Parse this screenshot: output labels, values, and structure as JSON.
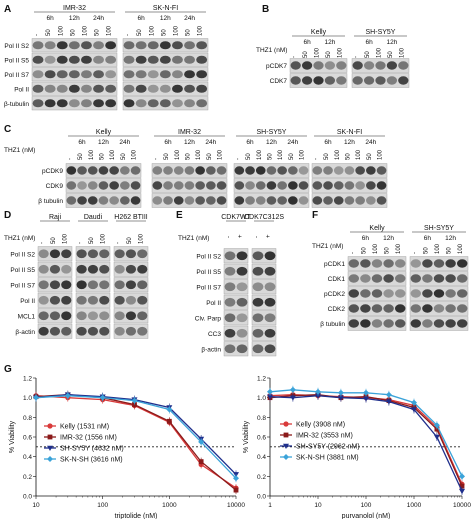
{
  "panels": {
    "A": {
      "letter": "A",
      "groups": [
        {
          "label": "IMR-32"
        },
        {
          "label": "SK-N-FI"
        }
      ],
      "times": [
        "6h",
        "12h",
        "24h"
      ],
      "lanes": [
        "-",
        "50",
        "100",
        "50",
        "100",
        "50",
        "100"
      ],
      "rows": [
        "Pol II S2",
        "Pol II S5",
        "Pol II S7",
        "Pol II",
        "β-tubulin"
      ]
    },
    "B": {
      "letter": "B",
      "groups": [
        {
          "label": "Kelly"
        },
        {
          "label": "SH-SY5Y"
        }
      ],
      "times": [
        "6h",
        "12h"
      ],
      "lanes": [
        "-",
        "50",
        "100",
        "50",
        "100"
      ],
      "thz": "THZ1 (nM)",
      "rows": [
        "pCDK7",
        "CDK7"
      ]
    },
    "C": {
      "letter": "C",
      "groups": [
        {
          "label": "Kelly"
        },
        {
          "label": "IMR-32"
        },
        {
          "label": "SH-SY5Y"
        },
        {
          "label": "SK-N-FI"
        }
      ],
      "times": [
        "6h",
        "12h",
        "24h"
      ],
      "lanes": [
        "-",
        "50",
        "100",
        "50",
        "100",
        "50",
        "100"
      ],
      "thz": "THZ1 (nM)",
      "rows": [
        "pCDK9",
        "CDK9",
        "β tubulin"
      ]
    },
    "D": {
      "letter": "D",
      "groups": [
        {
          "label": "Raji"
        },
        {
          "label": "Daudi"
        },
        {
          "label": "H262 BTIII"
        }
      ],
      "lanes": [
        "-",
        "50",
        "100"
      ],
      "thz": "THZ1 (nM)",
      "rows": [
        "Pol II S2",
        "Pol II S5",
        "Pol II S7",
        "Pol II",
        "MCL1",
        "β-actin"
      ]
    },
    "E": {
      "letter": "E",
      "groups": [
        {
          "label": "CDK7WT"
        },
        {
          "label": "CDK7C312S"
        }
      ],
      "lanes": [
        "-",
        "+"
      ],
      "thz": "THZ1 (nM)",
      "rows": [
        "Pol II S2",
        "Pol II S5",
        "Pol II S7",
        "Pol II",
        "Clv. Parp",
        "CC3",
        "β-actin"
      ]
    },
    "F": {
      "letter": "F",
      "groups": [
        {
          "label": "Kelly"
        },
        {
          "label": "SH-SY5Y"
        }
      ],
      "times": [
        "6h",
        "12h"
      ],
      "lanes": [
        "-",
        "50",
        "100",
        "50",
        "100"
      ],
      "thz": "THZ1 (nM)",
      "rows": [
        "pCDK1",
        "CDK1",
        "pCDK2",
        "CDK2",
        "β tubulin"
      ]
    },
    "G": {
      "letter": "G"
    }
  },
  "chart_data": [
    {
      "type": "line",
      "xlabel": "triptolide (nM)",
      "ylabel": "% Viability",
      "xscale": "log",
      "xlim": [
        10,
        10000
      ],
      "ylim": [
        0.0,
        1.2
      ],
      "xticks": [
        "10",
        "100",
        "1000",
        "10000"
      ],
      "yticks": [
        "0.0",
        "0.2",
        "0.4",
        "0.6",
        "0.8",
        "1.0",
        "1.2"
      ],
      "threshold": 0.5,
      "x": [
        10,
        30,
        100,
        300,
        1000,
        3000,
        10000
      ],
      "series": [
        {
          "name": "Kelly (1531 nM)",
          "color": "#d93a3a",
          "marker": "circle",
          "values": [
            1.02,
            1.0,
            0.98,
            0.92,
            0.75,
            0.32,
            0.08
          ]
        },
        {
          "name": "IMR-32 (1556 nM)",
          "color": "#8b1a1a",
          "marker": "square",
          "values": [
            1.01,
            1.03,
            1.0,
            0.93,
            0.76,
            0.35,
            0.06
          ]
        },
        {
          "name": "SH-SY5Y (4632 nM)",
          "color": "#1f2f8c",
          "marker": "triangle",
          "values": [
            1.0,
            1.03,
            1.01,
            0.98,
            0.9,
            0.58,
            0.22
          ]
        },
        {
          "name": "SK-N-SH (3616 nM)",
          "color": "#3ba3d9",
          "marker": "diamond",
          "values": [
            1.0,
            1.02,
            1.0,
            0.97,
            0.88,
            0.55,
            0.18
          ]
        }
      ]
    },
    {
      "type": "line",
      "xlabel": "purvanolol (nM)",
      "ylabel": "% Viability",
      "xscale": "log",
      "xlim": [
        1,
        10000
      ],
      "ylim": [
        0.0,
        1.2
      ],
      "xticks": [
        "1",
        "10",
        "100",
        "1000",
        "10000"
      ],
      "yticks": [
        "0.0",
        "0.2",
        "0.4",
        "0.6",
        "0.8",
        "1.0",
        "1.2"
      ],
      "threshold": 0.5,
      "x": [
        1,
        3,
        10,
        30,
        100,
        300,
        1000,
        3000,
        10000
      ],
      "series": [
        {
          "name": "Kelly (3908 nM)",
          "color": "#d93a3a",
          "marker": "circle",
          "values": [
            1.02,
            1.03,
            1.02,
            1.01,
            1.0,
            0.98,
            0.92,
            0.7,
            0.12
          ]
        },
        {
          "name": "IMR-32 (3553 nM)",
          "color": "#8b1a1a",
          "marker": "square",
          "values": [
            1.0,
            1.02,
            1.03,
            1.0,
            1.01,
            0.97,
            0.9,
            0.68,
            0.1
          ]
        },
        {
          "name": "SH-SY5Y (2962 nM)",
          "color": "#1f2f8c",
          "marker": "triangle",
          "values": [
            1.01,
            1.0,
            1.02,
            1.0,
            0.99,
            0.96,
            0.88,
            0.6,
            0.05
          ]
        },
        {
          "name": "SK-N-SH (3881 nM)",
          "color": "#3ba3d9",
          "marker": "diamond",
          "values": [
            1.06,
            1.08,
            1.06,
            1.05,
            1.05,
            1.03,
            0.95,
            0.72,
            0.2
          ]
        }
      ]
    }
  ]
}
